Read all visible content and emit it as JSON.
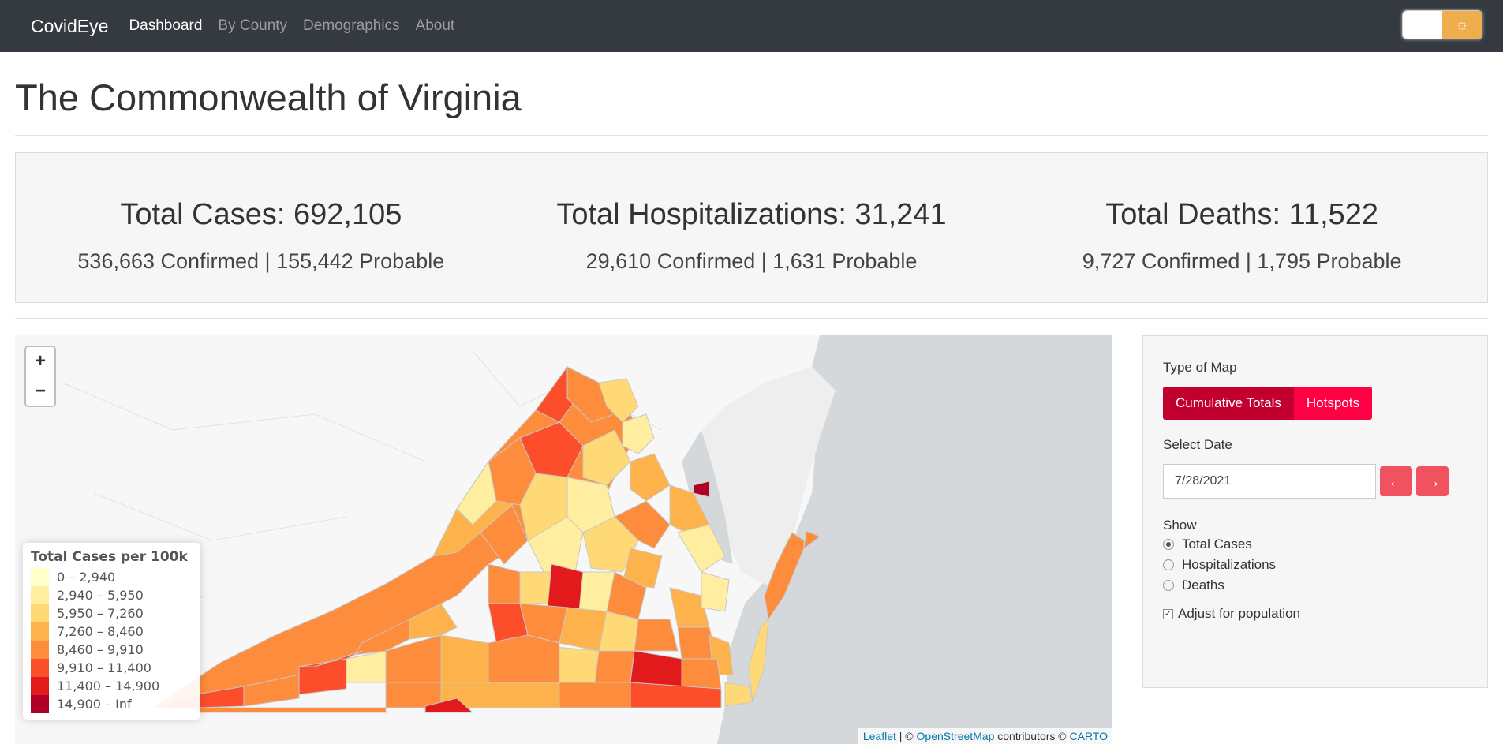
{
  "navbar": {
    "brand": "CovidEye",
    "links": [
      "Dashboard",
      "By County",
      "Demographics",
      "About"
    ],
    "active": "Dashboard",
    "theme_icon": "sun-icon"
  },
  "page_title": "The Commonwealth of Virginia",
  "stats": [
    {
      "headline": "Total Cases: 692,105",
      "detail": "536,663 Confirmed | 155,442 Probable"
    },
    {
      "headline": "Total Hospitalizations: 31,241",
      "detail": "29,610 Confirmed | 1,631 Probable"
    },
    {
      "headline": "Total Deaths: 11,522",
      "detail": "9,727 Confirmed | 1,795 Probable"
    }
  ],
  "map": {
    "zoom_in": "+",
    "zoom_out": "−",
    "legend_title": "Total Cases per 100k",
    "legend": [
      {
        "label": "0 – 2,940",
        "color": "#ffffcc"
      },
      {
        "label": "2,940 – 5,950",
        "color": "#ffeda0"
      },
      {
        "label": "5,950 – 7,260",
        "color": "#fed976"
      },
      {
        "label": "7,260 – 8,460",
        "color": "#feb24c"
      },
      {
        "label": "8,460 – 9,910",
        "color": "#fd8d3c"
      },
      {
        "label": "9,910 – 11,400",
        "color": "#fc4e2a"
      },
      {
        "label": "11,400 – 14,900",
        "color": "#e31a1c"
      },
      {
        "label": "14,900 – Inf",
        "color": "#b10026"
      }
    ],
    "attribution": {
      "leaflet": "Leaflet",
      "sep": " | © ",
      "osm": "OpenStreetMap",
      "contrib": " contributors © ",
      "carto": "CARTO"
    }
  },
  "controls": {
    "map_type_label": "Type of Map",
    "map_type_options": [
      "Cumulative Totals",
      "Hotspots"
    ],
    "date_label": "Select Date",
    "date_value": "7/28/2021",
    "prev_icon": "arrow-left-icon",
    "next_icon": "arrow-right-icon",
    "show_label": "Show",
    "show_options": [
      "Total Cases",
      "Hospitalizations",
      "Deaths"
    ],
    "show_selected": "Total Cases",
    "adjust_label": "Adjust for population",
    "adjust_checked": true
  }
}
